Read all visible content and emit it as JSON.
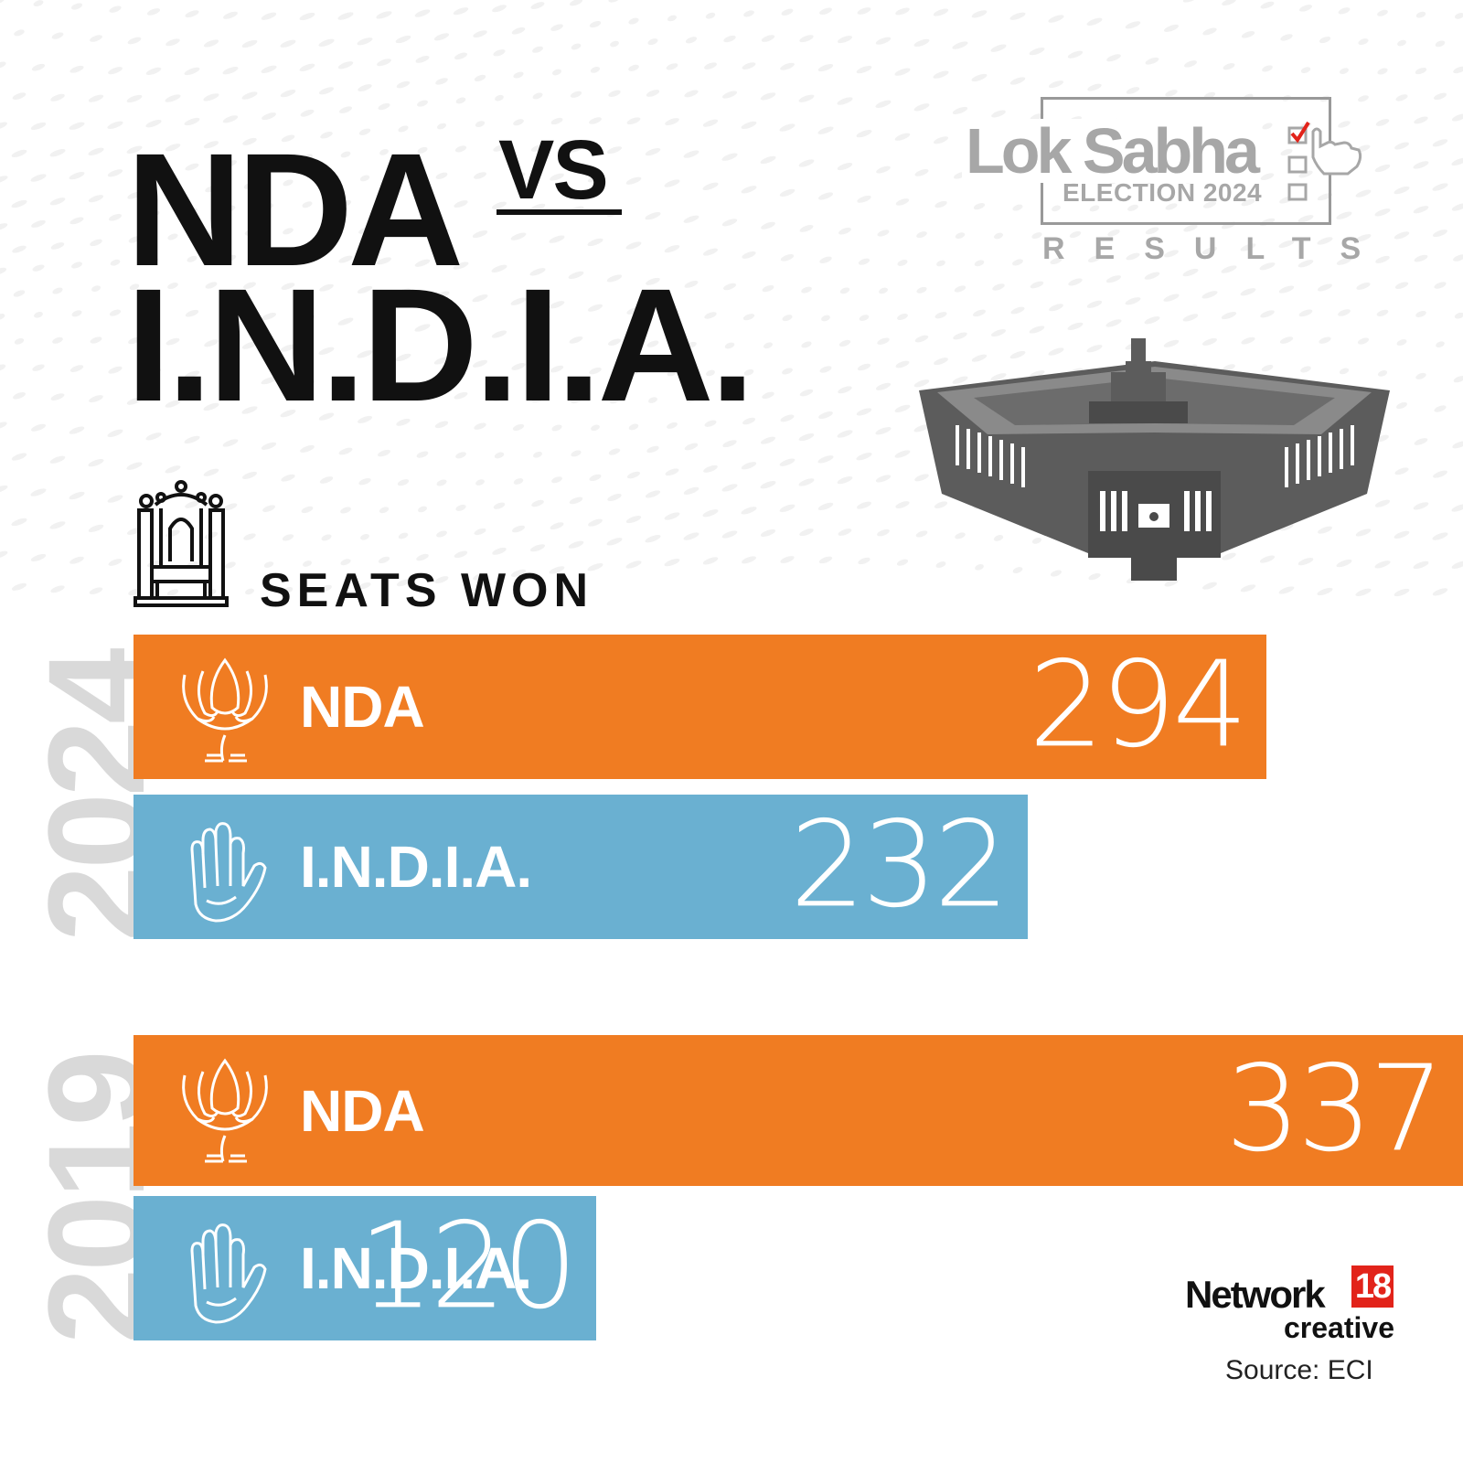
{
  "title": {
    "line1": "NDA",
    "vs": "VS",
    "line2": "I.N.D.I.A."
  },
  "logo": {
    "line1": "Lok Sabha",
    "line2": "ELECTION 2024",
    "line3": "RESULTS"
  },
  "seats_label": "SEATS WON",
  "colors": {
    "nda": "#f07c22",
    "india": "#6ab0d1",
    "year_text": "#d9d9d9"
  },
  "icons": {
    "seat": "throne-icon",
    "nda": "lotus-icon",
    "india": "hand-icon",
    "building": "parliament-icon"
  },
  "chart_data": {
    "type": "bar",
    "orientation": "horizontal",
    "title": "SEATS WON",
    "xlim": [
      0,
      337
    ],
    "groups": [
      {
        "year": "2024",
        "bars": [
          {
            "name": "NDA",
            "value": 294,
            "label": "294"
          },
          {
            "name": "I.N.D.I.A.",
            "value": 232,
            "label": "232"
          }
        ]
      },
      {
        "year": "2019",
        "bars": [
          {
            "name": "NDA",
            "value": 337,
            "label": "337"
          },
          {
            "name": "I.N.D.I.A.",
            "value": 120,
            "label": "120"
          }
        ]
      }
    ]
  },
  "footer": {
    "brand": "Network",
    "brand_number": "18",
    "brand_sub": "creative",
    "source": "Source: ECI"
  }
}
